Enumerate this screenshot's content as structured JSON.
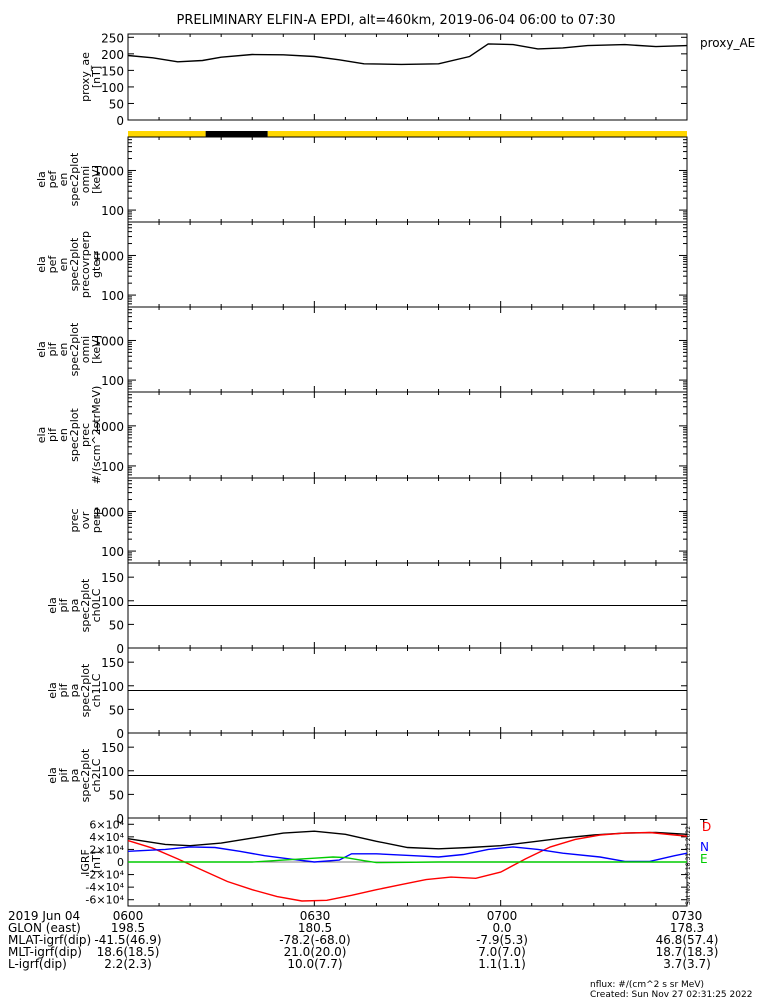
{
  "title": "PRELIMINARY ELFIN-A EPDI, alt=460km, 2019-06-04 06:00 to 07:30",
  "stamp": "Sat Nov 26 18:31:25 2022",
  "footer": {
    "nflux": "nflux: #/(cm^2 s sr MeV)",
    "created": "Created: Sun Nov 27 02:31:25 2022"
  },
  "ephemeris": {
    "times": [
      "0600",
      "0630",
      "0700",
      "0730"
    ],
    "rows": [
      {
        "label": "2019 Jun 04",
        "values": [
          "",
          "",
          "",
          ""
        ]
      },
      {
        "label": "GLON (east)",
        "values": [
          "198.5",
          "180.5",
          "0.0",
          "178.3"
        ]
      },
      {
        "label": "MLAT-igrf(dip)",
        "values": [
          "-41.5(46.9)",
          "-78.2(-68.0)",
          "-7.9(5.3)",
          "46.8(57.4)"
        ]
      },
      {
        "label": "MLT-igrf(dip)",
        "values": [
          "18.6(18.5)",
          "21.0(20.0)",
          "7.0(7.0)",
          "18.7(18.3)"
        ]
      },
      {
        "label": "L-igrf(dip)",
        "values": [
          "2.2(2.3)",
          "10.0(7.7)",
          "1.1(1.1)",
          "3.7(3.7)"
        ]
      }
    ]
  },
  "chart_data": [
    {
      "type": "line",
      "ylabel": [
        "proxy_ae",
        "[nT]"
      ],
      "legend": [
        "proxy_AE"
      ],
      "legend_placement": "right",
      "ylim": [
        0,
        260
      ],
      "yticks": [
        "0",
        "50",
        "100",
        "150",
        "200",
        "250"
      ],
      "series": [
        {
          "name": "proxy_AE",
          "x": [
            0,
            4,
            8,
            12,
            15,
            20,
            25,
            30,
            34,
            38,
            44,
            50,
            55,
            58,
            62,
            66,
            70,
            74,
            80,
            85,
            90
          ],
          "y": [
            195,
            188,
            176,
            180,
            190,
            198,
            197,
            192,
            182,
            170,
            168,
            170,
            192,
            230,
            228,
            215,
            218,
            225,
            228,
            222,
            225
          ],
          "color": "#000000"
        }
      ]
    },
    {
      "type": "bar",
      "name": "bar indicator",
      "segments": [
        {
          "x": [
            0,
            12.5
          ],
          "color": "#ffd700"
        },
        {
          "x": [
            12.5,
            22.5
          ],
          "color": "#000000"
        },
        {
          "x": [
            22.5,
            90
          ],
          "color": "#ffd700"
        }
      ]
    },
    {
      "type": "heatmap",
      "ylabel": [
        "ela",
        "pef",
        "en",
        "spec2plot",
        "omni",
        "[keV]"
      ],
      "yscale": "log",
      "ylim": [
        50,
        7000
      ],
      "yticks": [
        "100",
        "1000"
      ],
      "values": []
    },
    {
      "type": "heatmap",
      "ylabel": [
        "ela",
        "pef",
        "en",
        "spec2plot",
        "precovrperp",
        "gterr"
      ],
      "yscale": "log",
      "ylim": [
        50,
        7000
      ],
      "yticks": [
        "100",
        "1000"
      ],
      "values": []
    },
    {
      "type": "heatmap",
      "ylabel": [
        "ela",
        "pif",
        "en",
        "spec2plot",
        "omni",
        "[keV]"
      ],
      "yscale": "log",
      "ylim": [
        50,
        7000
      ],
      "yticks": [
        "100",
        "1000"
      ],
      "values": []
    },
    {
      "type": "heatmap",
      "ylabel": [
        "ela",
        "pif",
        "en",
        "spec2plot",
        "prec",
        "#/(scm^2strMeV)"
      ],
      "yscale": "log",
      "ylim": [
        50,
        7000
      ],
      "yticks": [
        "100",
        "1000"
      ],
      "values": []
    },
    {
      "type": "heatmap",
      "ylabel": [
        "prec",
        "ovr",
        "perp"
      ],
      "yscale": "log",
      "ylim": [
        50,
        7000
      ],
      "yticks": [
        "100",
        "1000"
      ],
      "values": []
    },
    {
      "type": "heatmap",
      "ylabel": [
        "ela",
        "pif",
        "pa",
        "spec2plot",
        "ch0LC"
      ],
      "ylim": [
        0,
        180
      ],
      "yticks": [
        "0",
        "50",
        "100",
        "150"
      ],
      "reference_line": 90,
      "values": []
    },
    {
      "type": "heatmap",
      "ylabel": [
        "ela",
        "pif",
        "pa",
        "spec2plot",
        "ch1LC"
      ],
      "ylim": [
        0,
        180
      ],
      "yticks": [
        "0",
        "50",
        "100",
        "150"
      ],
      "reference_line": 90,
      "values": []
    },
    {
      "type": "heatmap",
      "ylabel": [
        "ela",
        "pif",
        "pa",
        "spec2plot",
        "ch2LC"
      ],
      "ylim": [
        0,
        180
      ],
      "yticks": [
        "0",
        "50",
        "100",
        "150"
      ],
      "reference_line": 90,
      "values": []
    },
    {
      "type": "line",
      "ylabel": [
        "IGRF",
        "[nT]"
      ],
      "ylim": [
        -70000,
        70000
      ],
      "yticks": [
        "-6×10⁴",
        "-4×10⁴",
        "-2×10⁴",
        "0",
        "2×10⁴",
        "4×10⁴",
        "6×10⁴"
      ],
      "ytick_values": [
        -60000,
        -40000,
        -20000,
        0,
        20000,
        40000,
        60000
      ],
      "legend": [
        "T",
        "D",
        "N",
        "E"
      ],
      "legend_placement": "right",
      "series": [
        {
          "name": "T",
          "color": "#000000",
          "x": [
            0,
            6,
            10,
            15,
            20,
            25,
            30,
            35,
            40,
            45,
            50,
            55,
            60,
            65,
            70,
            75,
            80,
            85,
            90
          ],
          "y": [
            37000,
            28000,
            26000,
            30000,
            38000,
            46000,
            49000,
            44000,
            33000,
            23000,
            21000,
            23000,
            26000,
            32000,
            38000,
            43000,
            46000,
            47000,
            44000
          ]
        },
        {
          "name": "D",
          "color": "#ff0000",
          "x": [
            0,
            4,
            8,
            12,
            16,
            20,
            24,
            28,
            32,
            36,
            40,
            44,
            48,
            52,
            56,
            60,
            64,
            68,
            72,
            76,
            80,
            84,
            88,
            90
          ],
          "y": [
            34000,
            22000,
            5000,
            -13000,
            -31000,
            -44000,
            -55000,
            -62000,
            -61000,
            -53000,
            -44000,
            -36000,
            -28000,
            -24000,
            -26000,
            -16000,
            5000,
            24000,
            36000,
            43000,
            46000,
            47000,
            43000,
            41000
          ]
        },
        {
          "name": "N",
          "color": "#0000ff",
          "x": [
            0,
            6,
            10,
            14,
            18,
            22,
            26,
            30,
            34,
            36,
            40,
            46,
            50,
            54,
            58,
            62,
            66,
            70,
            76,
            80,
            84,
            88,
            90
          ],
          "y": [
            17000,
            20000,
            24000,
            23000,
            17000,
            10000,
            5000,
            0,
            3000,
            13000,
            13000,
            10000,
            8000,
            12000,
            20000,
            24000,
            20000,
            14000,
            8000,
            1000,
            1000,
            10000,
            14000
          ]
        },
        {
          "name": "E",
          "color": "#00cc00",
          "x": [
            0,
            20,
            25,
            30,
            33,
            35,
            38,
            40,
            50,
            60,
            70,
            80,
            90
          ],
          "y": [
            0,
            0,
            3000,
            6000,
            8000,
            7000,
            2000,
            -1000,
            0,
            0,
            0,
            0,
            0
          ]
        }
      ]
    }
  ]
}
